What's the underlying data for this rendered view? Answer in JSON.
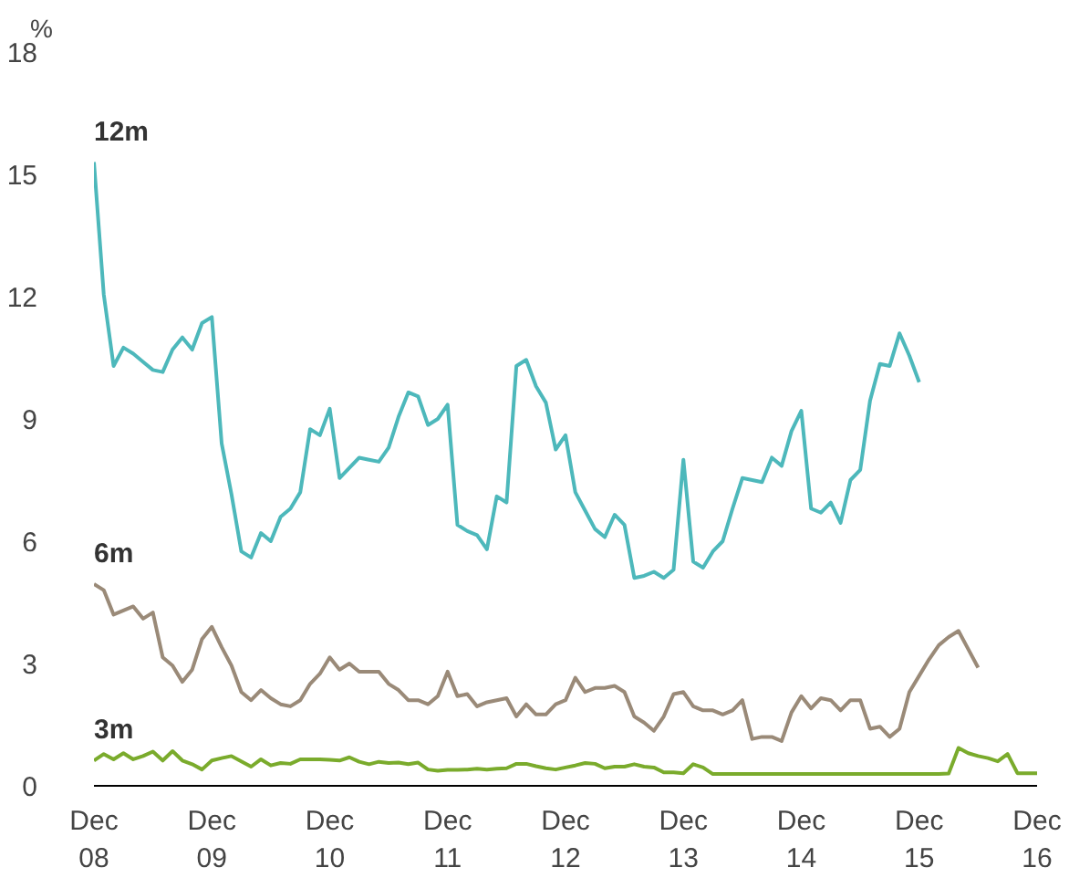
{
  "chart_data": {
    "type": "line",
    "ylabel": "%",
    "x": [
      "2008-12",
      "2009-01",
      "2009-02",
      "2009-03",
      "2009-04",
      "2009-05",
      "2009-06",
      "2009-07",
      "2009-08",
      "2009-09",
      "2009-10",
      "2009-11",
      "2009-12",
      "2010-01",
      "2010-02",
      "2010-03",
      "2010-04",
      "2010-05",
      "2010-06",
      "2010-07",
      "2010-08",
      "2010-09",
      "2010-10",
      "2010-11",
      "2010-12",
      "2011-01",
      "2011-02",
      "2011-03",
      "2011-04",
      "2011-05",
      "2011-06",
      "2011-07",
      "2011-08",
      "2011-09",
      "2011-10",
      "2011-11",
      "2011-12",
      "2012-01",
      "2012-02",
      "2012-03",
      "2012-04",
      "2012-05",
      "2012-06",
      "2012-07",
      "2012-08",
      "2012-09",
      "2012-10",
      "2012-11",
      "2012-12",
      "2013-01",
      "2013-02",
      "2013-03",
      "2013-04",
      "2013-05",
      "2013-06",
      "2013-07",
      "2013-08",
      "2013-09",
      "2013-10",
      "2013-11",
      "2013-12",
      "2014-01",
      "2014-02",
      "2014-03",
      "2014-04",
      "2014-05",
      "2014-06",
      "2014-07",
      "2014-08",
      "2014-09",
      "2014-10",
      "2014-11",
      "2014-12",
      "2015-01",
      "2015-02",
      "2015-03",
      "2015-04",
      "2015-05",
      "2015-06",
      "2015-07",
      "2015-08",
      "2015-09",
      "2015-10",
      "2015-11",
      "2015-12",
      "2016-01",
      "2016-02",
      "2016-03",
      "2016-04",
      "2016-05",
      "2016-06",
      "2016-07",
      "2016-08",
      "2016-09",
      "2016-10",
      "2016-11",
      "2016-12"
    ],
    "xlim": [
      "2008-12",
      "2016-12"
    ],
    "xticks": [
      {
        "value": "2008-12",
        "label": "Dec\n08"
      },
      {
        "value": "2009-12",
        "label": "Dec\n09"
      },
      {
        "value": "2010-12",
        "label": "Dec\n10"
      },
      {
        "value": "2011-12",
        "label": "Dec\n11"
      },
      {
        "value": "2012-12",
        "label": "Dec\n12"
      },
      {
        "value": "2013-12",
        "label": "Dec\n13"
      },
      {
        "value": "2014-12",
        "label": "Dec\n14"
      },
      {
        "value": "2015-12",
        "label": "Dec\n15"
      },
      {
        "value": "2016-12",
        "label": "Dec\n16"
      }
    ],
    "ylim": [
      0,
      18
    ],
    "yticks": [
      0,
      3,
      6,
      9,
      12,
      15,
      18
    ],
    "grid": false,
    "line_style": "solid",
    "marker": "none",
    "series": [
      {
        "name": "12m",
        "color": "#4db8bb",
        "values": [
          15.3,
          12.05,
          10.3,
          10.75,
          10.6,
          10.4,
          10.2,
          10.15,
          10.7,
          11.0,
          10.7,
          11.35,
          11.5,
          8.4,
          7.15,
          5.75,
          5.6,
          6.2,
          6.0,
          6.6,
          6.8,
          7.2,
          8.75,
          8.6,
          9.25,
          7.55,
          7.8,
          8.05,
          8.0,
          7.95,
          8.3,
          9.05,
          9.65,
          9.55,
          8.85,
          9.0,
          9.35,
          6.4,
          6.25,
          6.15,
          5.8,
          7.1,
          6.95,
          10.3,
          10.45,
          9.8,
          9.4,
          8.25,
          8.6,
          7.2,
          6.75,
          6.3,
          6.1,
          6.65,
          6.4,
          5.1,
          5.15,
          5.25,
          5.1,
          5.3,
          8.0,
          5.5,
          5.35,
          5.75,
          6.0,
          6.8,
          7.55,
          7.5,
          7.45,
          8.05,
          7.85,
          8.7,
          9.2,
          6.8,
          6.7,
          6.95,
          6.45,
          7.5,
          7.75,
          9.45,
          10.35,
          10.3,
          11.1,
          10.55,
          9.9,
          null,
          null,
          null,
          null,
          null,
          null,
          null,
          null,
          null,
          null,
          null,
          null
        ]
      },
      {
        "name": "6m",
        "color": "#9a8a78",
        "values": [
          4.95,
          4.8,
          4.2,
          4.3,
          4.4,
          4.1,
          4.25,
          3.15,
          2.95,
          2.55,
          2.85,
          3.6,
          3.9,
          3.4,
          2.95,
          2.3,
          2.1,
          2.35,
          2.15,
          2.0,
          1.95,
          2.1,
          2.5,
          2.75,
          3.15,
          2.85,
          3.0,
          2.8,
          2.8,
          2.8,
          2.5,
          2.35,
          2.1,
          2.1,
          2.0,
          2.2,
          2.8,
          2.2,
          2.25,
          1.95,
          2.05,
          2.1,
          2.15,
          1.7,
          2.0,
          1.75,
          1.75,
          2.0,
          2.1,
          2.65,
          2.3,
          2.4,
          2.4,
          2.45,
          2.3,
          1.7,
          1.55,
          1.35,
          1.7,
          2.25,
          2.3,
          1.95,
          1.85,
          1.85,
          1.75,
          1.85,
          2.1,
          1.15,
          1.2,
          1.2,
          1.1,
          1.8,
          2.2,
          1.9,
          2.15,
          2.1,
          1.85,
          2.1,
          2.1,
          1.4,
          1.45,
          1.2,
          1.4,
          2.3,
          2.7,
          3.1,
          3.45,
          3.65,
          3.8,
          3.35,
          2.9,
          null,
          null,
          null,
          null,
          null,
          null
        ]
      },
      {
        "name": "3m",
        "color": "#7aab2c",
        "values": [
          0.62,
          0.78,
          0.65,
          0.8,
          0.65,
          0.73,
          0.84,
          0.62,
          0.85,
          0.62,
          0.53,
          0.4,
          0.62,
          0.68,
          0.73,
          0.6,
          0.47,
          0.65,
          0.5,
          0.56,
          0.54,
          0.65,
          0.65,
          0.65,
          0.64,
          0.62,
          0.7,
          0.59,
          0.53,
          0.59,
          0.56,
          0.57,
          0.53,
          0.57,
          0.4,
          0.37,
          0.39,
          0.39,
          0.4,
          0.42,
          0.4,
          0.42,
          0.43,
          0.54,
          0.54,
          0.48,
          0.43,
          0.4,
          0.45,
          0.5,
          0.56,
          0.54,
          0.43,
          0.47,
          0.47,
          0.53,
          0.47,
          0.45,
          0.33,
          0.33,
          0.31,
          0.53,
          0.45,
          0.29,
          0.29,
          0.29,
          0.29,
          0.29,
          0.29,
          0.29,
          0.29,
          0.29,
          0.29,
          0.29,
          0.29,
          0.29,
          0.29,
          0.29,
          0.29,
          0.29,
          0.29,
          0.29,
          0.29,
          0.29,
          0.29,
          0.29,
          0.29,
          0.3,
          0.93,
          0.8,
          0.73,
          0.68,
          0.6,
          0.78,
          0.31,
          0.31,
          0.31
        ]
      }
    ]
  }
}
